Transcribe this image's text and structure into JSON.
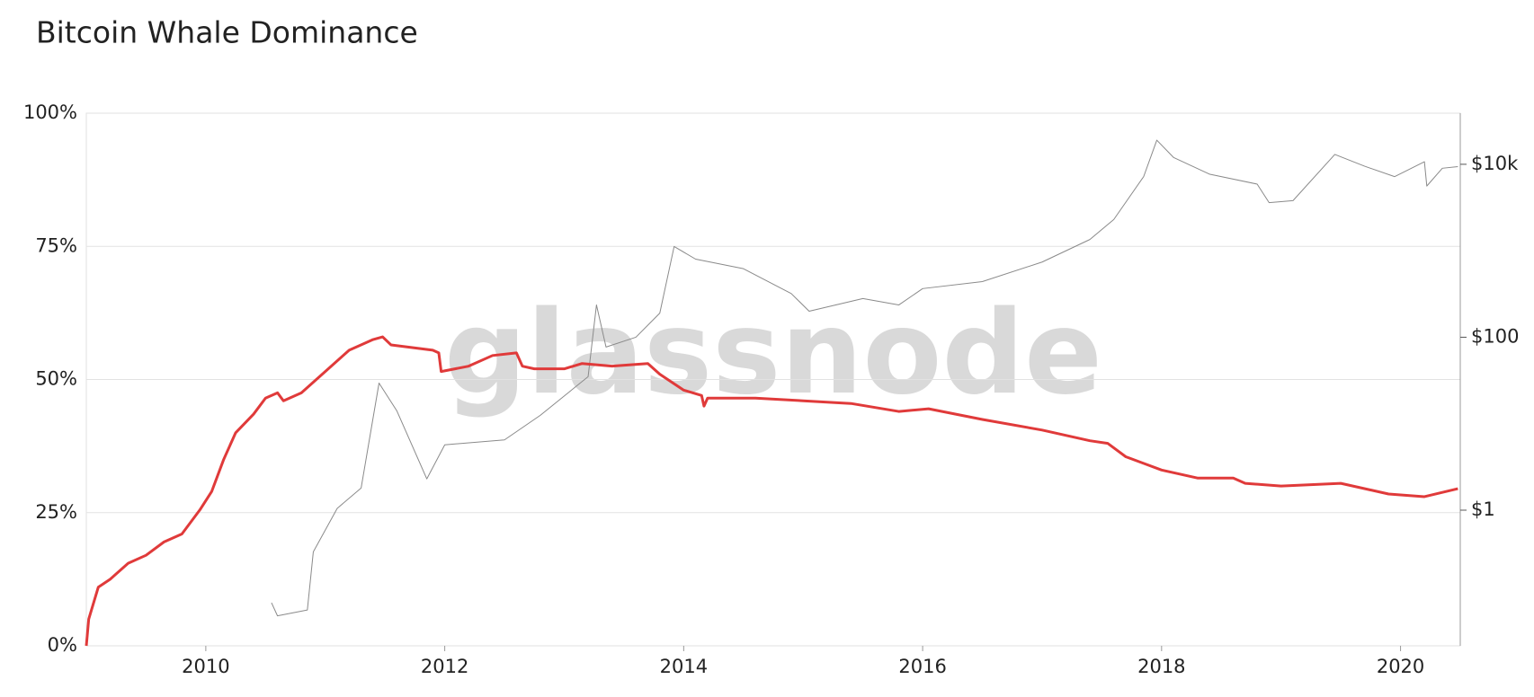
{
  "chart_data": {
    "type": "line",
    "title": "Bitcoin Whale Dominance",
    "watermark": "glassnode",
    "xlim": [
      2009,
      2020.5
    ],
    "xticks": [
      2010,
      2012,
      2014,
      2016,
      2018,
      2020
    ],
    "ylim": [
      0,
      100
    ],
    "yticks": [
      {
        "value": 0,
        "label": "0%"
      },
      {
        "value": 25,
        "label": "25%"
      },
      {
        "value": 50,
        "label": "50%"
      },
      {
        "value": 75,
        "label": "75%"
      },
      {
        "value": 100,
        "label": "100%"
      }
    ],
    "y2lim": [
      0.027,
      39000
    ],
    "y2log": true,
    "y2ticks": [
      {
        "value": 1,
        "label": "$1"
      },
      {
        "value": 100,
        "label": "$100"
      },
      {
        "value": 10000,
        "label": "$10k"
      }
    ],
    "grid": true,
    "series": [
      {
        "color": "#e03a3a",
        "x": [
          2009.0,
          2009.02,
          2009.1,
          2009.2,
          2009.35,
          2009.5,
          2009.65,
          2009.8,
          2009.95,
          2010.05,
          2010.15,
          2010.25,
          2010.4,
          2010.5,
          2010.6,
          2010.65,
          2010.8,
          2011.0,
          2011.2,
          2011.4,
          2011.48,
          2011.55,
          2011.9,
          2011.95,
          2011.97,
          2012.2,
          2012.4,
          2012.6,
          2012.65,
          2012.75,
          2013.0,
          2013.15,
          2013.4,
          2013.7,
          2013.8,
          2014.0,
          2014.15,
          2014.17,
          2014.2,
          2014.6,
          2015.0,
          2015.4,
          2015.8,
          2016.05,
          2016.5,
          2017.0,
          2017.4,
          2017.55,
          2017.7,
          2018.0,
          2018.3,
          2018.6,
          2018.7,
          2019.0,
          2019.5,
          2019.9,
          2020.2,
          2020.48
        ],
        "values": [
          0,
          5,
          11,
          12.5,
          15.5,
          17,
          19.5,
          21,
          25.5,
          29,
          35,
          40,
          43.5,
          46.5,
          47.5,
          46,
          47.5,
          51.5,
          55.5,
          57.5,
          58,
          56.5,
          55.5,
          55,
          51.5,
          52.5,
          54.5,
          55,
          52.5,
          52,
          52,
          53,
          52.5,
          53,
          51,
          48,
          47,
          45,
          46.5,
          46.5,
          46,
          45.5,
          44,
          44.5,
          42.5,
          40.5,
          38.5,
          38,
          35.5,
          33,
          31.5,
          31.5,
          30.5,
          30,
          30.5,
          28.5,
          28,
          29.5
        ]
      },
      {
        "color": "#8a8a8a",
        "axis": "y2",
        "x": [
          2010.55,
          2010.6,
          2010.85,
          2010.9,
          2011.1,
          2011.3,
          2011.45,
          2011.6,
          2011.85,
          2012.0,
          2012.5,
          2012.8,
          2013.2,
          2013.27,
          2013.35,
          2013.6,
          2013.8,
          2013.92,
          2014.1,
          2014.5,
          2014.9,
          2015.05,
          2015.5,
          2015.8,
          2016.0,
          2016.5,
          2017.0,
          2017.4,
          2017.6,
          2017.85,
          2017.96,
          2018.1,
          2018.4,
          2018.8,
          2018.9,
          2019.1,
          2019.45,
          2019.7,
          2019.95,
          2020.2,
          2020.22,
          2020.35,
          2020.48
        ],
        "values": [
          0.085,
          0.06,
          0.07,
          0.33,
          1.05,
          1.8,
          29.5,
          14,
          2.3,
          5.7,
          6.5,
          12.5,
          35,
          236,
          77,
          100,
          190,
          1120,
          800,
          620,
          320,
          200,
          280,
          236,
          365,
          440,
          740,
          1350,
          2300,
          7200,
          19000,
          12000,
          7700,
          5900,
          3600,
          3800,
          13000,
          9500,
          7200,
          10700,
          5600,
          9000,
          9400
        ]
      }
    ]
  }
}
